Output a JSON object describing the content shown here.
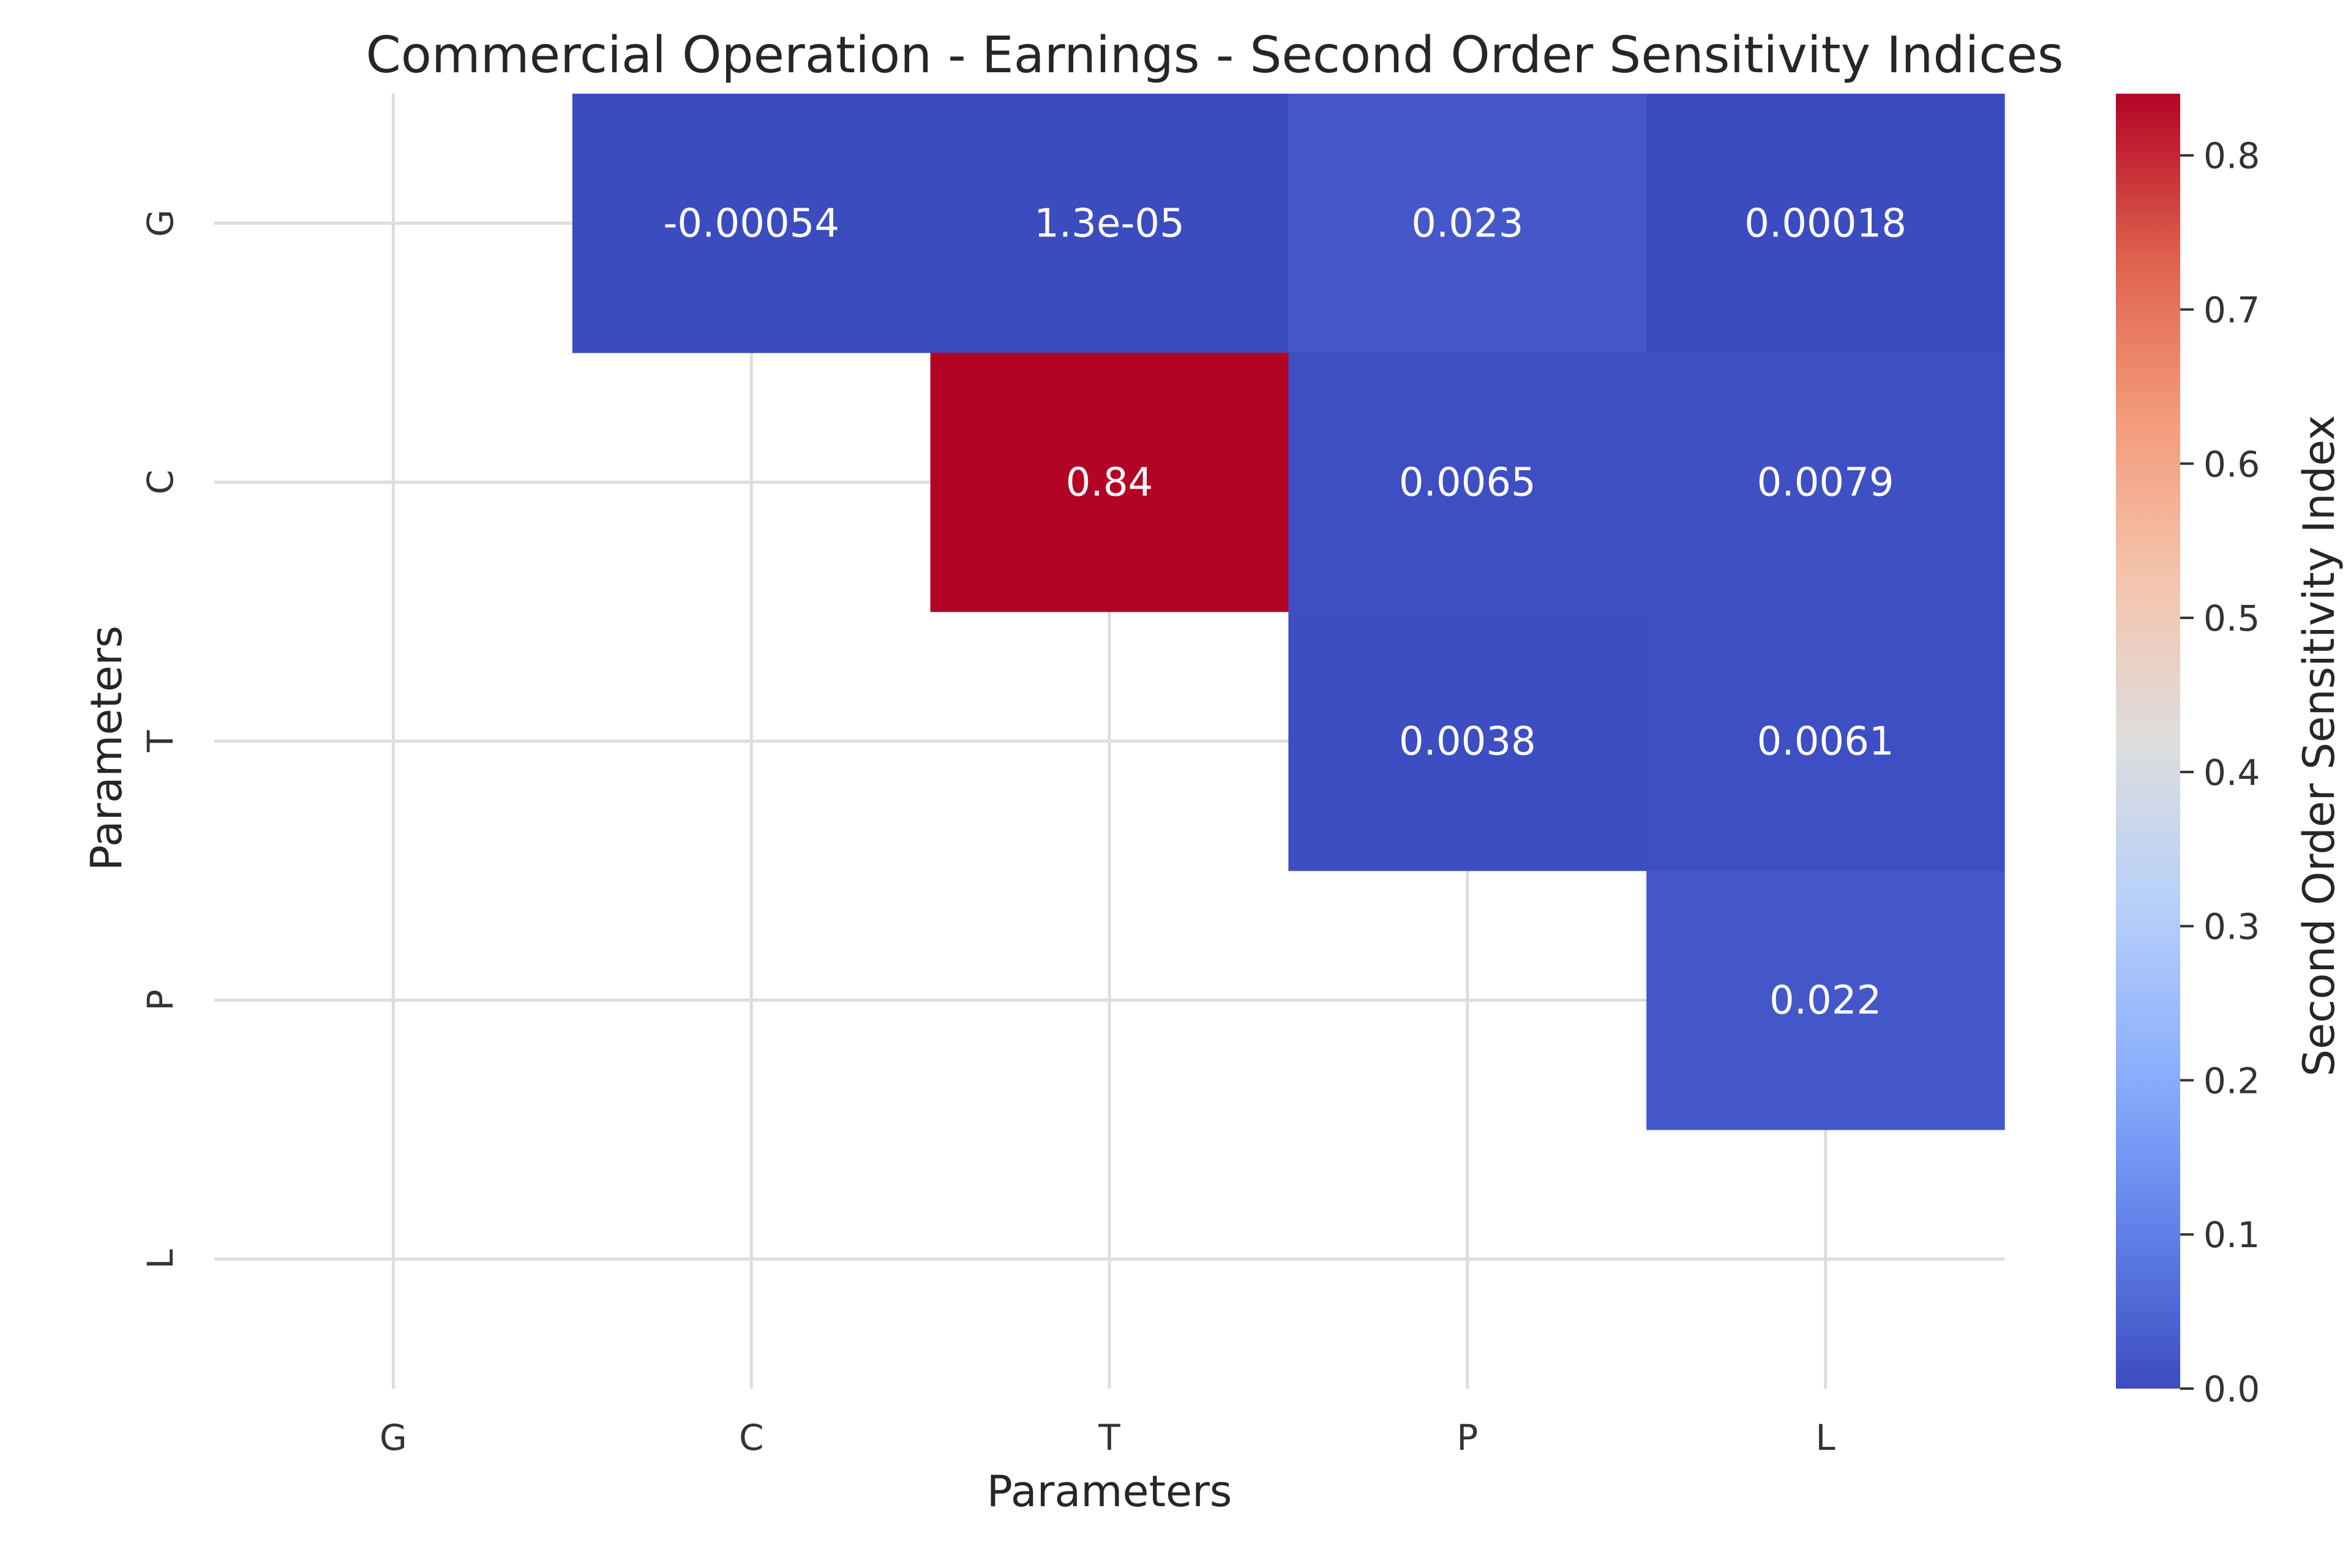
{
  "chart_data": {
    "type": "heatmap",
    "title": "Commercial Operation - Earnings - Second Order Sensitivity Indices",
    "xlabel": "Parameters",
    "ylabel": "Parameters",
    "x_categories": [
      "G",
      "C",
      "T",
      "P",
      "L"
    ],
    "y_categories": [
      "G",
      "C",
      "T",
      "P",
      "L"
    ],
    "cells": [
      {
        "row": "G",
        "col": "C",
        "value": -0.00054,
        "label": "-0.00054"
      },
      {
        "row": "G",
        "col": "T",
        "value": 1.3e-05,
        "label": "1.3e-05"
      },
      {
        "row": "G",
        "col": "P",
        "value": 0.023,
        "label": "0.023"
      },
      {
        "row": "G",
        "col": "L",
        "value": 0.00018,
        "label": "0.00018"
      },
      {
        "row": "C",
        "col": "T",
        "value": 0.84,
        "label": "0.84"
      },
      {
        "row": "C",
        "col": "P",
        "value": 0.0065,
        "label": "0.0065"
      },
      {
        "row": "C",
        "col": "L",
        "value": 0.0079,
        "label": "0.0079"
      },
      {
        "row": "T",
        "col": "P",
        "value": 0.0038,
        "label": "0.0038"
      },
      {
        "row": "T",
        "col": "L",
        "value": 0.0061,
        "label": "0.0061"
      },
      {
        "row": "P",
        "col": "L",
        "value": 0.022,
        "label": "0.022"
      }
    ],
    "colorbar": {
      "label": "Second Order Sensitivity Index",
      "colormap": "coolwarm",
      "range": [
        0.0,
        0.84
      ],
      "ticks": [
        0.0,
        0.1,
        0.2,
        0.3,
        0.4,
        0.5,
        0.6,
        0.7,
        0.8
      ],
      "tick_labels": [
        "0.0",
        "0.1",
        "0.2",
        "0.3",
        "0.4",
        "0.5",
        "0.6",
        "0.7",
        "0.8"
      ]
    },
    "grid": true
  }
}
